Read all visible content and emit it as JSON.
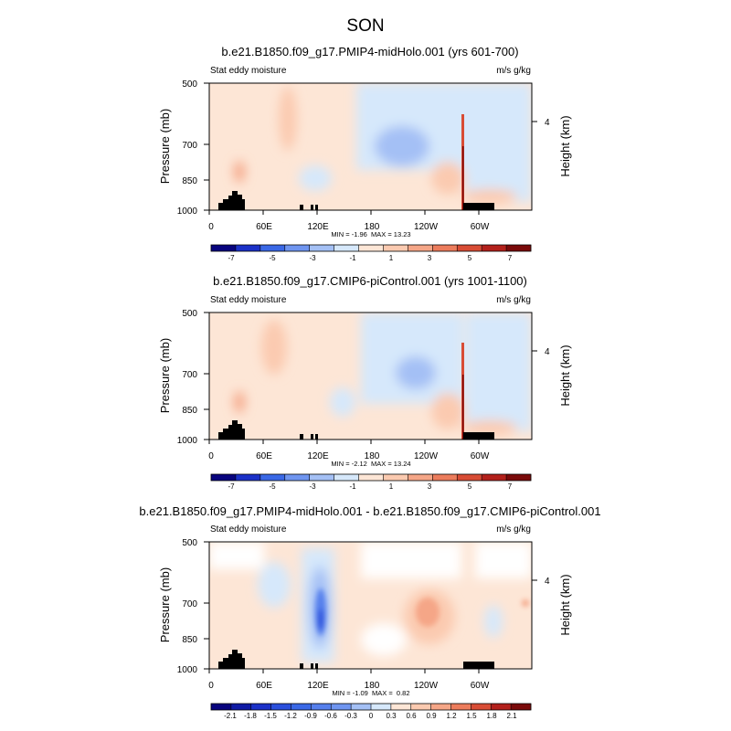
{
  "figure": {
    "title": "SON"
  },
  "chart_data": [
    {
      "type": "heatmap",
      "title": "b.e21.B1850.f09_g17.PMIP4-midHolo.001 (yrs 601-700)",
      "left_label": "Stat eddy moisture",
      "right_label": "m/s g/kg",
      "ylabel": "Pressure (mb)",
      "ylabel_right": "Height (km)",
      "y_ticks": [
        "500",
        "700",
        "850",
        "1000"
      ],
      "y_right_ticks": [
        "4"
      ],
      "x_ticks": [
        "0",
        "60E",
        "120E",
        "180",
        "120W",
        "60W"
      ],
      "stats": "MIN = -1.96  MAX = 13.23",
      "colorbar": {
        "labels": [
          "-7",
          "-5",
          "-3",
          "-1",
          "1",
          "3",
          "5",
          "7"
        ],
        "colors": [
          "#08047e",
          "#1b31c8",
          "#3a68e6",
          "#6f95f0",
          "#a4c0f5",
          "#d6e8fb",
          "#fde6d6",
          "#fbcab0",
          "#f5a687",
          "#ec7c5c",
          "#d84c35",
          "#b3201b",
          "#7a0a0a"
        ]
      }
    },
    {
      "type": "heatmap",
      "title": "b.e21.B1850.f09_g17.CMIP6-piControl.001 (yrs 1001-1100)",
      "left_label": "Stat eddy moisture",
      "right_label": "m/s g/kg",
      "ylabel": "Pressure (mb)",
      "ylabel_right": "Height (km)",
      "y_ticks": [
        "500",
        "700",
        "850",
        "1000"
      ],
      "y_right_ticks": [
        "4"
      ],
      "x_ticks": [
        "0",
        "60E",
        "120E",
        "180",
        "120W",
        "60W"
      ],
      "stats": "MIN = -2.12  MAX = 13.24",
      "colorbar": {
        "labels": [
          "-7",
          "-5",
          "-3",
          "-1",
          "1",
          "3",
          "5",
          "7"
        ],
        "colors": [
          "#08047e",
          "#1b31c8",
          "#3a68e6",
          "#6f95f0",
          "#a4c0f5",
          "#d6e8fb",
          "#fde6d6",
          "#fbcab0",
          "#f5a687",
          "#ec7c5c",
          "#d84c35",
          "#b3201b",
          "#7a0a0a"
        ]
      }
    },
    {
      "type": "heatmap",
      "title": "b.e21.B1850.f09_g17.PMIP4-midHolo.001 - b.e21.B1850.f09_g17.CMIP6-piControl.001",
      "left_label": "Stat eddy moisture",
      "right_label": "m/s g/kg",
      "ylabel": "Pressure (mb)",
      "ylabel_right": "Height (km)",
      "y_ticks": [
        "500",
        "700",
        "850",
        "1000"
      ],
      "y_right_ticks": [
        "4"
      ],
      "x_ticks": [
        "0",
        "60E",
        "120E",
        "180",
        "120W",
        "60W"
      ],
      "stats": "MIN = -1.09  MAX =  0.82",
      "colorbar": {
        "labels": [
          "-2.1",
          "-1.8",
          "-1.5",
          "-1.2",
          "-0.9",
          "-0.6",
          "-0.3",
          "0",
          "0.3",
          "0.6",
          "0.9",
          "1.2",
          "1.5",
          "1.8",
          "2.1"
        ],
        "colors": [
          "#08047e",
          "#0f1aa5",
          "#1b31c8",
          "#2a4fdc",
          "#3a68e6",
          "#557fec",
          "#6f95f0",
          "#a4c0f5",
          "#d6e8fb",
          "#fde6d6",
          "#fbcab0",
          "#f5a687",
          "#ec7c5c",
          "#d84c35",
          "#b3201b",
          "#7a0a0a"
        ]
      }
    }
  ]
}
